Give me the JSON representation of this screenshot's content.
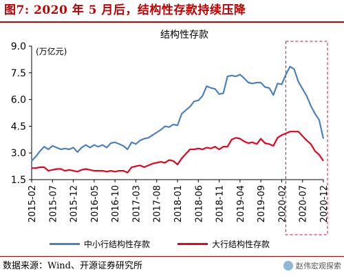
{
  "figure": {
    "title": "图7:  2020 年 5 月后，结构性存款持续压降",
    "source": "数据来源：Wind、开源证券研究所",
    "watermark": "赵伟宏观探索"
  },
  "colors": {
    "title_red": "#c00000",
    "series_blue": "#4a7fc1",
    "series_red": "#e8001c",
    "highlight_box": "#e8001c"
  },
  "chart_data": {
    "type": "line",
    "title": "结构性存款",
    "unit_label": "(万亿元)",
    "ylim": [
      1.5,
      9.0
    ],
    "yticks": [
      1.5,
      3.0,
      4.5,
      6.0,
      7.5,
      9.0
    ],
    "ytick_labels": [
      "1.5",
      "3.0",
      "4.5",
      "6.0",
      "7.5",
      "9.0"
    ],
    "xtick_labels": [
      "2015-02",
      "2015-07",
      "2015-12",
      "2016-05",
      "2016-10",
      "2017-03",
      "2017-08",
      "2018-01",
      "2018-06",
      "2018-11",
      "2019-04",
      "2019-09",
      "2020-02",
      "2020-07",
      "2020-12"
    ],
    "x": [
      "2015-02",
      "2015-03",
      "2015-04",
      "2015-05",
      "2015-06",
      "2015-07",
      "2015-08",
      "2015-09",
      "2015-10",
      "2015-11",
      "2015-12",
      "2016-01",
      "2016-02",
      "2016-03",
      "2016-04",
      "2016-05",
      "2016-06",
      "2016-07",
      "2016-08",
      "2016-09",
      "2016-10",
      "2016-11",
      "2016-12",
      "2017-01",
      "2017-02",
      "2017-03",
      "2017-04",
      "2017-05",
      "2017-06",
      "2017-07",
      "2017-08",
      "2017-09",
      "2017-10",
      "2017-11",
      "2017-12",
      "2018-01",
      "2018-02",
      "2018-03",
      "2018-04",
      "2018-05",
      "2018-06",
      "2018-07",
      "2018-08",
      "2018-09",
      "2018-10",
      "2018-11",
      "2018-12",
      "2019-01",
      "2019-02",
      "2019-03",
      "2019-04",
      "2019-05",
      "2019-06",
      "2019-07",
      "2019-08",
      "2019-09",
      "2019-10",
      "2019-11",
      "2019-12",
      "2020-01",
      "2020-02",
      "2020-03",
      "2020-04",
      "2020-05",
      "2020-06",
      "2020-07",
      "2020-08",
      "2020-09",
      "2020-10",
      "2020-11",
      "2020-12"
    ],
    "series": [
      {
        "name": "中小行结构性存款",
        "color": "#4a7fc1",
        "values": [
          2.55,
          2.8,
          3.1,
          3.35,
          3.2,
          3.4,
          3.3,
          3.2,
          3.25,
          3.2,
          3.3,
          3.05,
          3.3,
          3.45,
          3.3,
          3.45,
          3.35,
          3.45,
          3.3,
          3.55,
          3.6,
          3.5,
          3.4,
          3.2,
          3.6,
          3.5,
          3.7,
          3.8,
          3.85,
          4.0,
          4.15,
          4.3,
          4.5,
          4.45,
          4.6,
          4.55,
          5.2,
          5.4,
          5.6,
          5.9,
          5.95,
          6.2,
          6.75,
          6.65,
          6.6,
          6.3,
          6.35,
          7.3,
          7.35,
          7.3,
          7.4,
          7.2,
          6.95,
          6.9,
          6.95,
          6.95,
          6.7,
          6.65,
          6.25,
          6.9,
          6.85,
          7.4,
          7.85,
          7.7,
          7.0,
          6.6,
          6.2,
          5.65,
          5.2,
          4.85,
          3.8
        ]
      },
      {
        "name": "大行结构性存款",
        "color": "#e8001c",
        "values": [
          2.15,
          2.15,
          2.2,
          2.2,
          2.0,
          2.05,
          2.1,
          2.1,
          2.0,
          2.05,
          2.0,
          1.95,
          2.05,
          2.1,
          2.05,
          2.0,
          2.0,
          2.0,
          1.95,
          2.0,
          1.95,
          2.0,
          2.0,
          1.9,
          2.2,
          2.25,
          2.3,
          2.2,
          2.3,
          2.4,
          2.45,
          2.5,
          2.45,
          2.6,
          2.55,
          2.35,
          2.7,
          2.95,
          3.2,
          3.2,
          3.25,
          3.2,
          3.3,
          3.25,
          3.35,
          3.2,
          3.35,
          3.35,
          3.75,
          3.85,
          3.8,
          3.65,
          3.55,
          3.6,
          3.5,
          3.8,
          3.55,
          3.5,
          3.4,
          3.85,
          4.0,
          4.1,
          4.2,
          4.2,
          4.2,
          3.95,
          3.7,
          3.5,
          3.1,
          2.9,
          2.55
        ]
      }
    ],
    "highlight_range": [
      "2020-02",
      "2020-12"
    ],
    "legend_position": "bottom",
    "grid": false
  }
}
